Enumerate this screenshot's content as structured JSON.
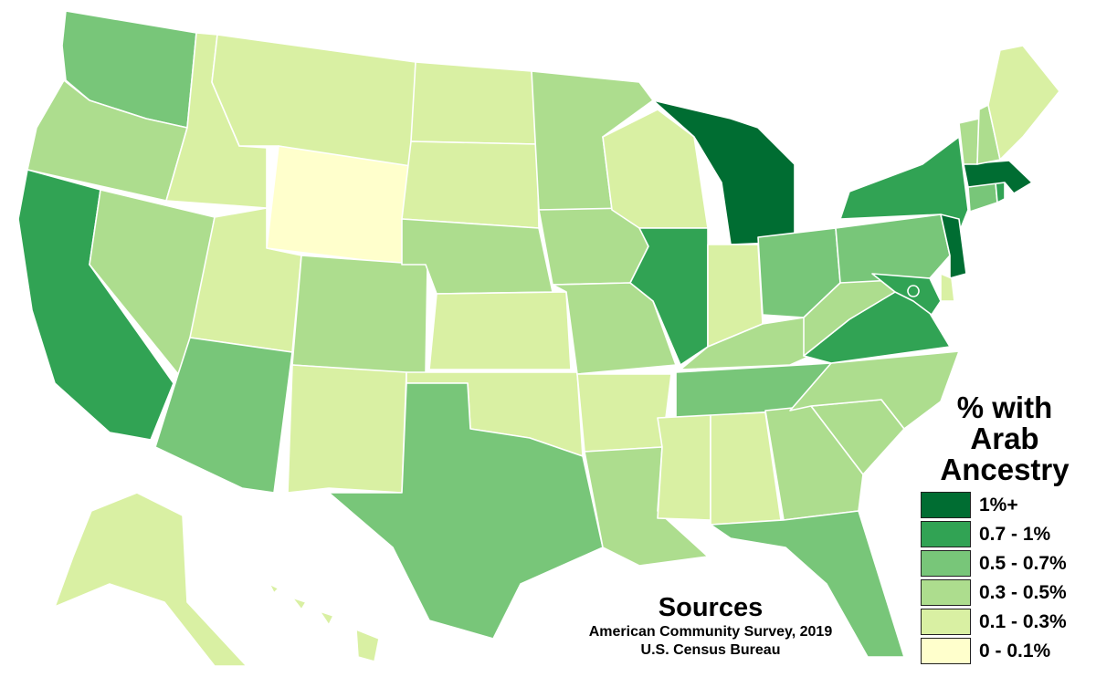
{
  "legend": {
    "title_lines": [
      "% with",
      "Arab",
      "Ancestry"
    ],
    "bins": [
      {
        "label": "1%+",
        "color": "#006d32"
      },
      {
        "label": "0.7 - 1%",
        "color": "#31a354"
      },
      {
        "label": "0.5 - 0.7%",
        "color": "#78c679"
      },
      {
        "label": "0.3 - 0.5%",
        "color": "#addd8e"
      },
      {
        "label": "0.1 - 0.3%",
        "color": "#d9f0a3"
      },
      {
        "label": "0 - 0.1%",
        "color": "#ffffcc"
      }
    ]
  },
  "sources": {
    "title": "Sources",
    "lines": [
      "American Community Survey, 2019",
      "U.S. Census Bureau"
    ]
  },
  "state_bins": {
    "WA": 2,
    "OR": 3,
    "CA": 1,
    "NV": 3,
    "ID": 4,
    "MT": 4,
    "WY": 5,
    "UT": 4,
    "AZ": 2,
    "CO": 3,
    "NM": 4,
    "ND": 4,
    "SD": 4,
    "NE": 3,
    "KS": 4,
    "OK": 4,
    "TX": 2,
    "MN": 3,
    "IA": 3,
    "MO": 3,
    "AR": 4,
    "LA": 3,
    "WI": 4,
    "IL": 1,
    "MI": 0,
    "IN": 4,
    "OH": 2,
    "KY": 3,
    "TN": 2,
    "MS": 4,
    "AL": 4,
    "GA": 3,
    "FL": 2,
    "SC": 3,
    "NC": 3,
    "VA": 1,
    "WV": 3,
    "PA": 2,
    "NY": 1,
    "NJ": 0,
    "DE": 4,
    "MD": 1,
    "DC": 1,
    "CT": 2,
    "RI": 1,
    "MA": 0,
    "VT": 3,
    "NH": 3,
    "ME": 4,
    "AK": 4,
    "HI": 4
  }
}
